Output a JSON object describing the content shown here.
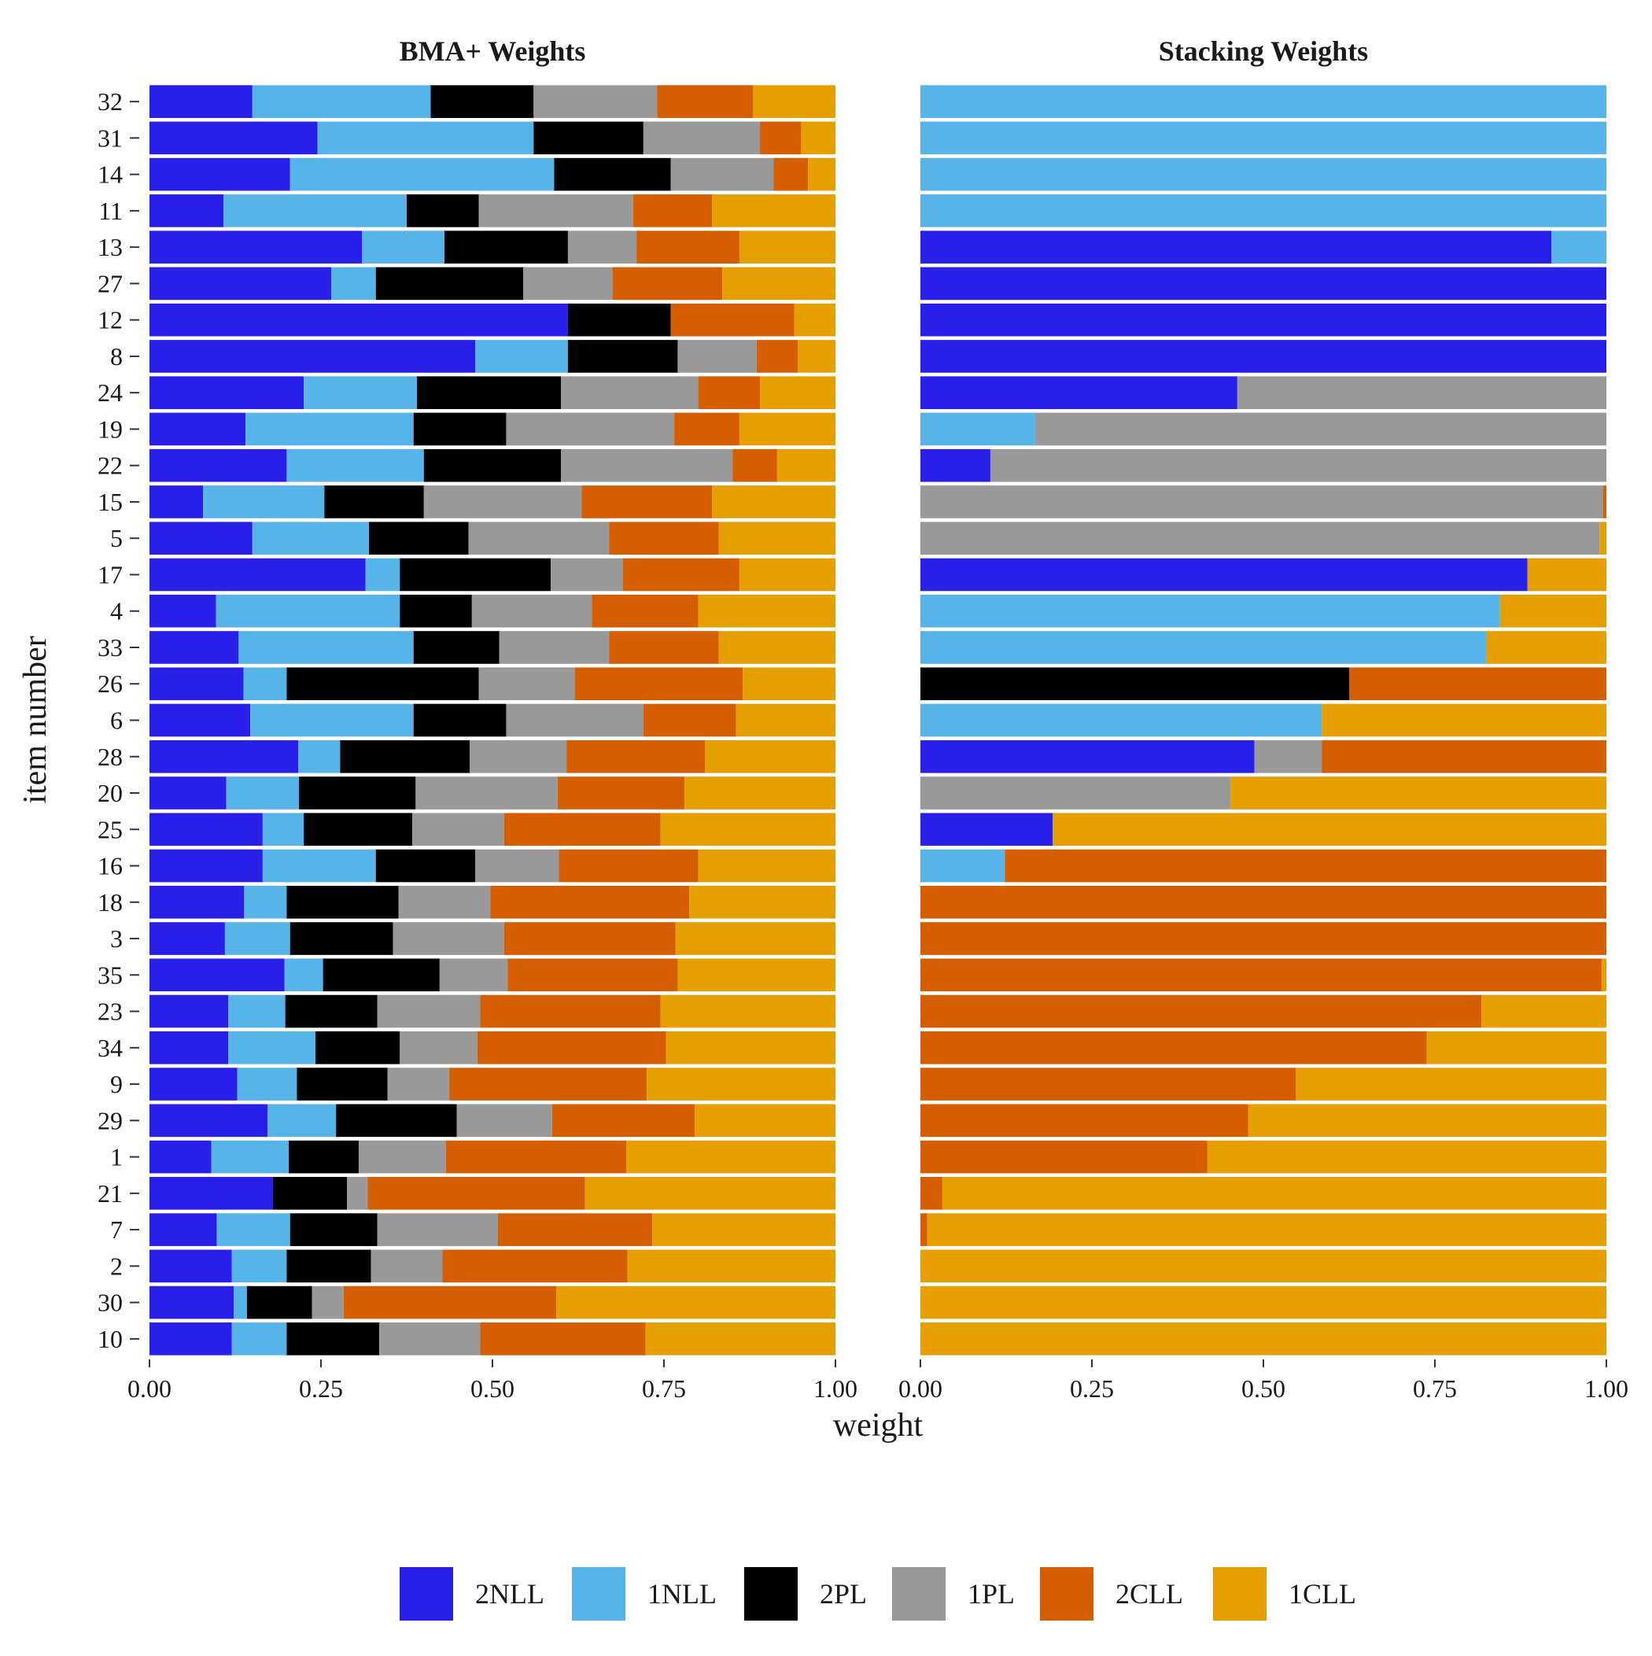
{
  "chart_data": {
    "type": "bar",
    "orientation": "horizontal",
    "stacked": true,
    "xlabel": "weight",
    "ylabel": "item number",
    "xlim": [
      0,
      1
    ],
    "x_ticks": [
      "0.00",
      "0.25",
      "0.50",
      "0.75",
      "1.00"
    ],
    "grid": false,
    "legend_position": "bottom",
    "categories": [
      "32",
      "31",
      "14",
      "11",
      "13",
      "27",
      "12",
      "8",
      "24",
      "19",
      "22",
      "15",
      "5",
      "17",
      "4",
      "33",
      "26",
      "6",
      "28",
      "20",
      "25",
      "16",
      "18",
      "3",
      "35",
      "23",
      "34",
      "9",
      "29",
      "1",
      "21",
      "7",
      "2",
      "30",
      "10"
    ],
    "series_names": [
      "2NLL",
      "1NLL",
      "2PL",
      "1PL",
      "2CLL",
      "1CLL"
    ],
    "colors": [
      "#2820E8",
      "#56B4E9",
      "#000000",
      "#999999",
      "#D55E00",
      "#E69F00"
    ],
    "panels": [
      {
        "title": "BMA+ Weights",
        "cumulative_breaks": [
          [
            0.15,
            0.41,
            0.56,
            0.74,
            0.88,
            1.0
          ],
          [
            0.245,
            0.56,
            0.72,
            0.89,
            0.95,
            1.0
          ],
          [
            0.205,
            0.59,
            0.76,
            0.91,
            0.96,
            1.0
          ],
          [
            0.108,
            0.375,
            0.48,
            0.705,
            0.82,
            1.0
          ],
          [
            0.31,
            0.43,
            0.61,
            0.71,
            0.86,
            1.0
          ],
          [
            0.265,
            0.33,
            0.545,
            0.675,
            0.835,
            1.0
          ],
          [
            0.61,
            0.61,
            0.76,
            0.76,
            0.94,
            1.0
          ],
          [
            0.475,
            0.61,
            0.77,
            0.885,
            0.945,
            1.0
          ],
          [
            0.225,
            0.39,
            0.6,
            0.8,
            0.89,
            1.0
          ],
          [
            0.14,
            0.385,
            0.52,
            0.765,
            0.86,
            1.0
          ],
          [
            0.2,
            0.4,
            0.6,
            0.85,
            0.915,
            1.0
          ],
          [
            0.078,
            0.255,
            0.4,
            0.63,
            0.82,
            1.0
          ],
          [
            0.15,
            0.32,
            0.465,
            0.67,
            0.83,
            1.0
          ],
          [
            0.315,
            0.365,
            0.585,
            0.69,
            0.86,
            1.0
          ],
          [
            0.097,
            0.365,
            0.47,
            0.645,
            0.8,
            1.0
          ],
          [
            0.13,
            0.385,
            0.51,
            0.67,
            0.83,
            1.0
          ],
          [
            0.137,
            0.2,
            0.48,
            0.62,
            0.865,
            1.0
          ],
          [
            0.147,
            0.385,
            0.52,
            0.72,
            0.855,
            1.0
          ],
          [
            0.217,
            0.278,
            0.467,
            0.608,
            0.81,
            1.0
          ],
          [
            0.112,
            0.218,
            0.388,
            0.595,
            0.78,
            1.0
          ],
          [
            0.165,
            0.225,
            0.383,
            0.517,
            0.745,
            1.0
          ],
          [
            0.165,
            0.33,
            0.475,
            0.597,
            0.8,
            1.0
          ],
          [
            0.138,
            0.2,
            0.363,
            0.497,
            0.787,
            1.0
          ],
          [
            0.11,
            0.205,
            0.355,
            0.517,
            0.767,
            1.0
          ],
          [
            0.197,
            0.253,
            0.423,
            0.522,
            0.77,
            1.0
          ],
          [
            0.115,
            0.198,
            0.332,
            0.482,
            0.745,
            1.0
          ],
          [
            0.115,
            0.242,
            0.365,
            0.478,
            0.753,
            1.0
          ],
          [
            0.128,
            0.215,
            0.347,
            0.437,
            0.725,
            1.0
          ],
          [
            0.172,
            0.272,
            0.448,
            0.587,
            0.795,
            1.0
          ],
          [
            0.09,
            0.203,
            0.305,
            0.432,
            0.695,
            1.0
          ],
          [
            0.18,
            0.18,
            0.288,
            0.318,
            0.635,
            1.0
          ],
          [
            0.098,
            0.205,
            0.332,
            0.508,
            0.733,
            1.0
          ],
          [
            0.12,
            0.2,
            0.323,
            0.427,
            0.697,
            1.0
          ],
          [
            0.123,
            0.142,
            0.237,
            0.283,
            0.593,
            1.0
          ],
          [
            0.12,
            0.2,
            0.335,
            0.482,
            0.723,
            1.0
          ]
        ]
      },
      {
        "title": "Stacking Weights",
        "cumulative_breaks": [
          [
            0,
            1,
            1,
            1,
            1,
            1
          ],
          [
            0,
            1,
            1,
            1,
            1,
            1
          ],
          [
            0,
            1,
            1,
            1,
            1,
            1
          ],
          [
            0,
            1,
            1,
            1,
            1,
            1
          ],
          [
            0.92,
            1,
            1,
            1,
            1,
            1
          ],
          [
            1,
            1,
            1,
            1,
            1,
            1
          ],
          [
            1,
            1,
            1,
            1,
            1,
            1
          ],
          [
            1,
            1,
            1,
            1,
            1,
            1
          ],
          [
            0.462,
            0.462,
            0.462,
            1,
            1,
            1
          ],
          [
            0,
            0.167,
            0.167,
            1,
            1,
            1
          ],
          [
            0.102,
            0.102,
            0.102,
            1,
            1,
            1
          ],
          [
            0,
            0,
            0,
            0.995,
            1,
            1
          ],
          [
            0,
            0,
            0,
            0.99,
            0.99,
            1
          ],
          [
            0.885,
            0.885,
            0.885,
            0.885,
            0.885,
            1
          ],
          [
            0,
            0.845,
            0.845,
            0.845,
            0.845,
            1
          ],
          [
            0,
            0.825,
            0.825,
            0.825,
            0.825,
            1
          ],
          [
            0,
            0,
            0.625,
            0.625,
            1,
            1
          ],
          [
            0,
            0.585,
            0.585,
            0.585,
            0.585,
            1
          ],
          [
            0.487,
            0.487,
            0.487,
            0.585,
            1,
            1
          ],
          [
            0,
            0,
            0,
            0.452,
            0.452,
            1
          ],
          [
            0.193,
            0.193,
            0.193,
            0.193,
            0.193,
            1
          ],
          [
            0,
            0.123,
            0.123,
            0.123,
            1,
            1
          ],
          [
            0,
            0,
            0,
            0,
            1,
            1
          ],
          [
            0,
            0,
            0,
            0,
            1,
            1
          ],
          [
            0,
            0,
            0,
            0,
            0.993,
            1
          ],
          [
            0,
            0,
            0,
            0,
            0.818,
            1
          ],
          [
            0,
            0,
            0,
            0,
            0.738,
            1
          ],
          [
            0,
            0,
            0,
            0,
            0.547,
            1
          ],
          [
            0,
            0,
            0,
            0,
            0.478,
            1
          ],
          [
            0,
            0,
            0,
            0,
            0.418,
            1
          ],
          [
            0,
            0,
            0,
            0,
            0.032,
            1
          ],
          [
            0,
            0,
            0,
            0,
            0.01,
            1
          ],
          [
            0,
            0,
            0,
            0,
            0,
            1
          ],
          [
            0,
            0,
            0,
            0,
            0,
            1
          ],
          [
            0,
            0,
            0,
            0,
            0,
            1
          ]
        ]
      }
    ]
  }
}
